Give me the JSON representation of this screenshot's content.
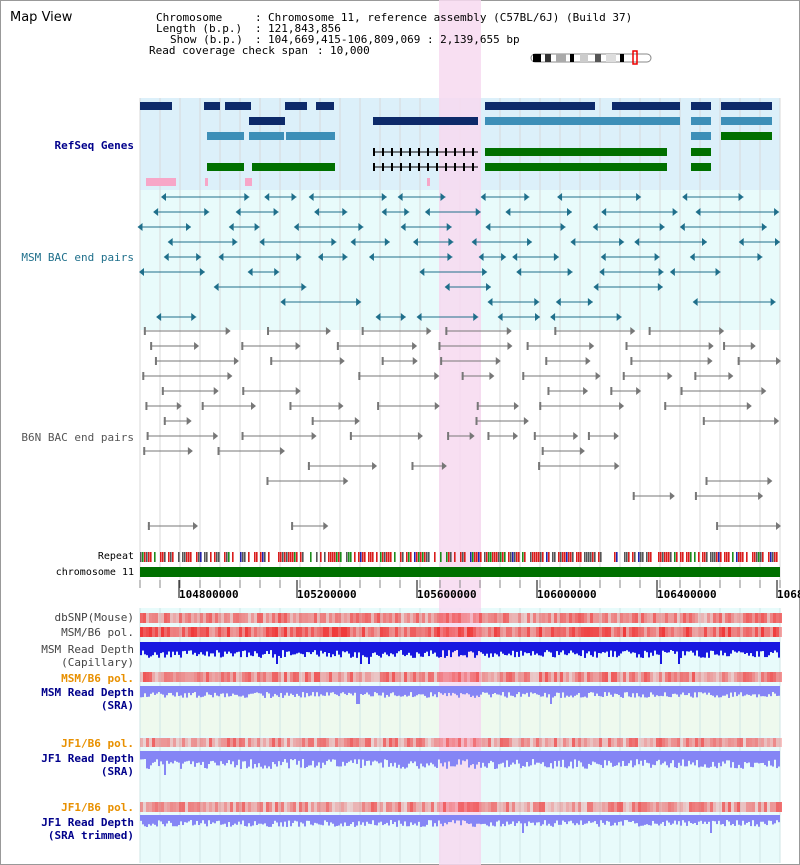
{
  "header": {
    "title": "Map View",
    "chromosome_key": "Chromosome",
    "chromosome_value": "Chromosome 11, reference assembly (C57BL/6J) (Build 37)",
    "length_key": "Length (b.p.)",
    "length_value": "121,843,856",
    "show_key": "Show (b.p.)",
    "show_value": "104,669,415-106,809,069 : 2,139,655 bp",
    "span_key": "Read coverage check span",
    "span_value": "10,000"
  },
  "tracks": {
    "refseq": "RefSeq Genes",
    "msm_bac": "MSM BAC end pairs",
    "b6n_bac": "B6N BAC end pairs",
    "repeat": "Repeat",
    "chromosome": "chromosome 11",
    "dbsnp": "dbSNP(Mouse)",
    "msm_b6_pol": "MSM/B6 pol.",
    "msm_depth_cap_1": "MSM Read Depth",
    "msm_depth_cap_2": "(Capillary)",
    "msm_b6_pol2": "MSM/B6 pol.",
    "msm_depth_sra_1": "MSM Read Depth",
    "msm_depth_sra_2": "(SRA)",
    "jf1_b6_pol": "JF1/B6 pol.",
    "jf1_depth_sra_1": "JF1 Read Depth",
    "jf1_depth_sra_2": "(SRA)",
    "jf1_b6_pol2": "JF1/B6 pol.",
    "jf1_depth_trim_1": "JF1 Read Depth",
    "jf1_depth_trim_2": "(SRA trimmed)"
  },
  "ruler": {
    "ticks": [
      "104800000",
      "105200000",
      "105600000",
      "106000000",
      "106400000",
      "1068"
    ]
  },
  "colors": {
    "refseq_bg": "#dcf0fa",
    "track_bg": "#e8fbfb",
    "highlight": "#f7d9f0",
    "chromosome": "#007000",
    "navy": "#0d2a6a",
    "steel": "#3d8fb8",
    "green": "#007000",
    "teal": "#1f6f8b",
    "gray": "#777777",
    "red_pol": "#ef3b3b",
    "blue_depth": "#1818e0",
    "light_blue_depth": "#8585f5",
    "orange_label": "#e89000",
    "navy_label": "#00008b"
  }
}
